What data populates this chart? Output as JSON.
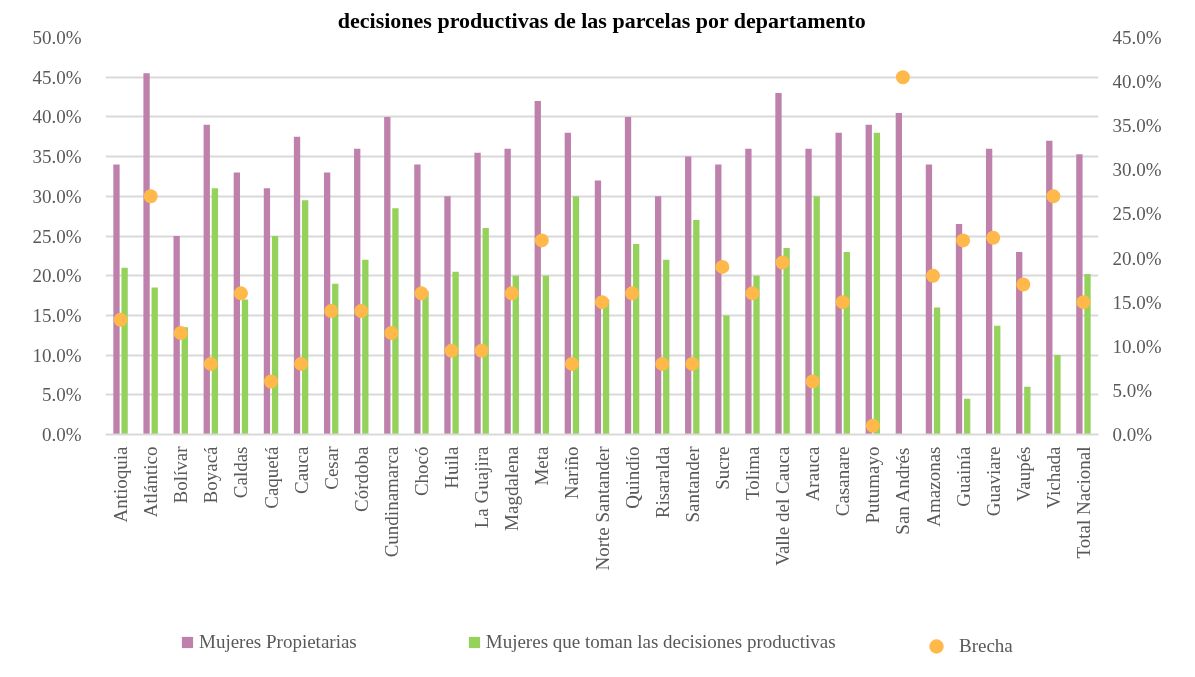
{
  "chart_data": {
    "type": "bar",
    "title": "decisiones productivas de las parcelas por departamento",
    "categories": [
      "Antioquia",
      "Atlántico",
      "Bolívar",
      "Boyacá",
      "Caldas",
      "Caquetá",
      "Cauca",
      "Cesar",
      "Córdoba",
      "Cundinamarca",
      "Chocó",
      "Huila",
      "La Guajira",
      "Magdalena",
      "Meta",
      "Nariño",
      "Norte Santander",
      "Quindío",
      "Risaralda",
      "Santander",
      "Sucre",
      "Tolima",
      "Valle del Cauca",
      "Arauca",
      "Casanare",
      "Putumayo",
      "San Andrés",
      "Amazonas",
      "Guainía",
      "Guaviare",
      "Vaupés",
      "Vichada",
      "Total Nacional"
    ],
    "series": [
      {
        "name": "Mujeres Propietarias",
        "color": "#bd81ab",
        "values": [
          34.0,
          45.5,
          25.0,
          39.0,
          33.0,
          31.0,
          37.5,
          33.0,
          36.0,
          40.0,
          34.0,
          30.0,
          35.5,
          36.0,
          42.0,
          38.0,
          32.0,
          40.0,
          30.0,
          35.0,
          34.0,
          36.0,
          43.0,
          36.0,
          38.0,
          39.0,
          40.5,
          34.0,
          26.5,
          36.0,
          23.0,
          37.0,
          35.3
        ]
      },
      {
        "name": "Mujeres que toman las decisiones productivas",
        "color": "#95d25b",
        "values": [
          21.0,
          18.5,
          13.5,
          31.0,
          17.0,
          25.0,
          29.5,
          19.0,
          22.0,
          28.5,
          18.0,
          20.5,
          26.0,
          20.0,
          20.0,
          30.0,
          17.0,
          24.0,
          22.0,
          27.0,
          15.0,
          20.0,
          23.5,
          30.0,
          23.0,
          38.0,
          null,
          16.0,
          4.5,
          13.7,
          6.0,
          10.0,
          20.2
        ]
      },
      {
        "name": "Brecha",
        "type": "scatter",
        "axis": "y2",
        "marker": "circle",
        "color": "#ffb84a",
        "values": [
          13.0,
          27.0,
          11.5,
          8.0,
          16.0,
          6.0,
          8.0,
          14.0,
          14.0,
          11.5,
          16.0,
          9.5,
          9.5,
          16.0,
          22.0,
          8.0,
          15.0,
          16.0,
          8.0,
          8.0,
          19.0,
          16.0,
          19.5,
          6.0,
          15.0,
          1.0,
          40.5,
          18.0,
          22.0,
          22.3,
          17.0,
          27.0,
          15.0
        ]
      }
    ],
    "ylim": [
      0,
      50
    ],
    "yticks": [
      {
        "value": 0,
        "label": "0.0%"
      },
      {
        "value": 5,
        "label": "5.0%"
      },
      {
        "value": 10,
        "label": "10.0%"
      },
      {
        "value": 15,
        "label": "15.0%"
      },
      {
        "value": 20,
        "label": "20.0%"
      },
      {
        "value": 25,
        "label": "25.0%"
      },
      {
        "value": 30,
        "label": "30.0%"
      },
      {
        "value": 35,
        "label": "35.0%"
      },
      {
        "value": 40,
        "label": "40.0%"
      },
      {
        "value": 45,
        "label": "45.0%"
      },
      {
        "value": 50,
        "label": "50.0%"
      }
    ],
    "y2lim": [
      0,
      45
    ],
    "y2ticks": [
      {
        "value": 0,
        "label": "0.0%"
      },
      {
        "value": 5,
        "label": "5.0%"
      },
      {
        "value": 10,
        "label": "10.0%"
      },
      {
        "value": 15,
        "label": "15.0%"
      },
      {
        "value": 20,
        "label": "20.0%"
      },
      {
        "value": 25,
        "label": "25.0%"
      },
      {
        "value": 30,
        "label": "30.0%"
      },
      {
        "value": 35,
        "label": "35.0%"
      },
      {
        "value": 40,
        "label": "40.0%"
      },
      {
        "value": 45,
        "label": "45.0%"
      }
    ],
    "grid": "y",
    "legend": "bottom"
  }
}
